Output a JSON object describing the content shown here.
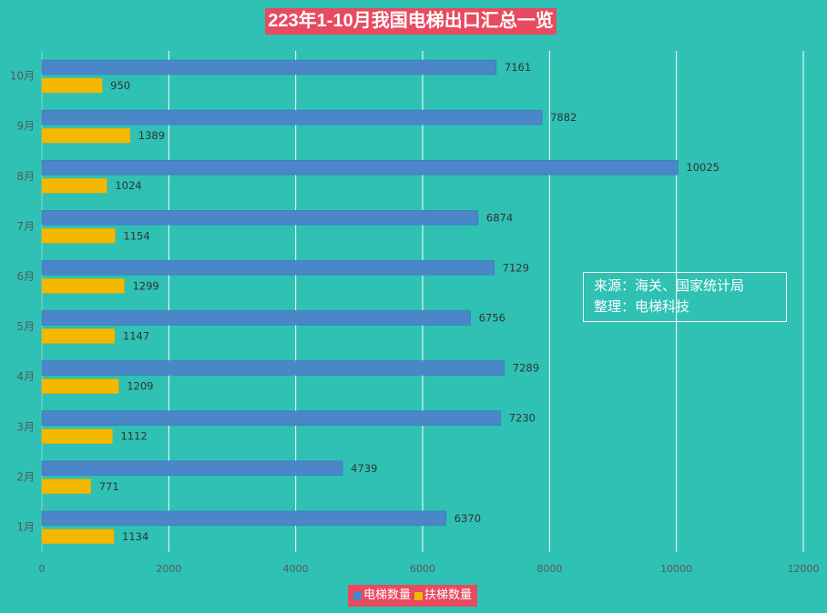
{
  "title": "223年1-10月我国电梯出口汇总一览",
  "source_box": {
    "line1": "来源：海关、国家统计局",
    "line2": "整理：电梯科技"
  },
  "colors": {
    "background": "#2fc1b4",
    "title_bg": "#e84a5f",
    "elevator": "#4a86c8",
    "escalator": "#f5b800",
    "grid": "#ffffff"
  },
  "chart_data": {
    "type": "bar",
    "orientation": "horizontal",
    "categories": [
      "1月",
      "2月",
      "3月",
      "4月",
      "5月",
      "6月",
      "7月",
      "8月",
      "9月",
      "10月"
    ],
    "series": [
      {
        "name": "电梯数量",
        "color": "#4a86c8",
        "values": [
          6370,
          4739,
          7230,
          7289,
          6756,
          7129,
          6874,
          10025,
          7882,
          7161
        ]
      },
      {
        "name": "扶梯数量",
        "color": "#f5b800",
        "values": [
          1134,
          771,
          1112,
          1209,
          1147,
          1299,
          1154,
          1024,
          1389,
          950
        ]
      }
    ],
    "xlim": [
      0,
      12000
    ],
    "xticks": [
      0,
      2000,
      4000,
      6000,
      8000,
      10000,
      12000
    ],
    "grid": true,
    "legend_position": "bottom"
  }
}
